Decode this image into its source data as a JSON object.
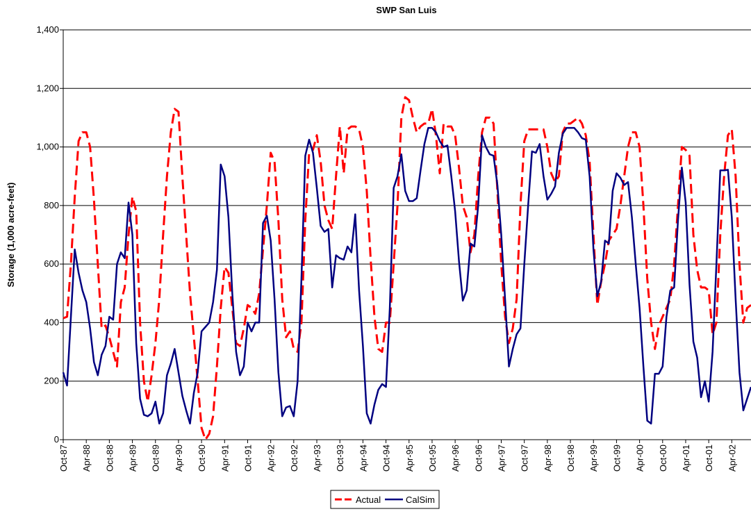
{
  "chart_data": {
    "type": "line",
    "title": "SWP San Luis",
    "y_label": "Storage (1,000 acre-feet)",
    "categories": [
      "Oct-87",
      null,
      null,
      null,
      null,
      null,
      "Apr-88",
      null,
      null,
      null,
      null,
      null,
      "Oct-88",
      null,
      null,
      null,
      null,
      null,
      "Apr-89",
      null,
      null,
      null,
      null,
      null,
      "Oct-89",
      null,
      null,
      null,
      null,
      null,
      "Apr-90",
      null,
      null,
      null,
      null,
      null,
      "Oct-90",
      null,
      null,
      null,
      null,
      null,
      "Apr-91",
      null,
      null,
      null,
      null,
      null,
      "Oct-91",
      null,
      null,
      null,
      null,
      null,
      "Apr-92",
      null,
      null,
      null,
      null,
      null,
      "Oct-92",
      null,
      null,
      null,
      null,
      null,
      "Apr-93",
      null,
      null,
      null,
      null,
      null,
      "Oct-93",
      null,
      null,
      null,
      null,
      null,
      "Apr-94",
      null,
      null,
      null,
      null,
      null,
      "Oct-94",
      null,
      null,
      null,
      null,
      null,
      "Apr-95",
      null,
      null,
      null,
      null,
      null,
      "Oct-95",
      null,
      null,
      null,
      null,
      null,
      "Apr-96",
      null,
      null,
      null,
      null,
      null,
      "Oct-96",
      null,
      null,
      null,
      null,
      null,
      "Apr-97",
      null,
      null,
      null,
      null,
      null,
      "Oct-97",
      null,
      null,
      null,
      null,
      null,
      "Apr-98",
      null,
      null,
      null,
      null,
      null,
      "Oct-98",
      null,
      null,
      null,
      null,
      null,
      "Apr-99",
      null,
      null,
      null,
      null,
      null,
      "Oct-99",
      null,
      null,
      null,
      null,
      null,
      "Apr-00",
      null,
      null,
      null,
      null,
      null,
      "Oct-00",
      null,
      null,
      null,
      null,
      null,
      "Apr-01",
      null,
      null,
      null,
      null,
      null,
      "Oct-01",
      null,
      null,
      null,
      null,
      null,
      "Apr-02",
      null,
      null,
      null,
      null,
      null
    ],
    "series": [
      {
        "name": "Actual",
        "color": "#ff0000",
        "dashed": true,
        "values": [
          415,
          420,
          600,
          830,
          1020,
          1050,
          1050,
          1000,
          820,
          600,
          380,
          390,
          350,
          300,
          250,
          470,
          520,
          700,
          830,
          780,
          400,
          200,
          130,
          220,
          330,
          480,
          700,
          900,
          1050,
          1130,
          1120,
          900,
          700,
          500,
          350,
          200,
          40,
          0,
          20,
          80,
          250,
          450,
          590,
          570,
          450,
          330,
          320,
          380,
          460,
          450,
          430,
          500,
          650,
          800,
          980,
          950,
          750,
          480,
          350,
          370,
          310,
          300,
          400,
          750,
          980,
          990,
          1040,
          950,
          800,
          750,
          720,
          900,
          1070,
          910,
          1060,
          1070,
          1070,
          1060,
          1000,
          850,
          620,
          420,
          310,
          300,
          400,
          400,
          600,
          800,
          1100,
          1170,
          1160,
          1100,
          1050,
          1070,
          1080,
          1080,
          1130,
          1040,
          910,
          1080,
          1070,
          1070,
          1040,
          930,
          800,
          760,
          640,
          700,
          900,
          1050,
          1100,
          1100,
          1080,
          850,
          600,
          420,
          330,
          380,
          480,
          800,
          1020,
          1060,
          1060,
          1060,
          1060,
          1060,
          1000,
          910,
          880,
          900,
          1050,
          1080,
          1080,
          1090,
          1100,
          1080,
          1040,
          950,
          700,
          460,
          540,
          600,
          680,
          700,
          720,
          800,
          900,
          1000,
          1050,
          1050,
          1000,
          800,
          550,
          400,
          310,
          390,
          420,
          450,
          480,
          600,
          800,
          1000,
          990,
          970,
          700,
          580,
          520,
          520,
          510,
          360,
          400,
          700,
          900,
          1040,
          1060,
          900,
          600,
          400,
          450,
          460
        ]
      },
      {
        "name": "CalSim",
        "color": "#000080",
        "dashed": false,
        "values": [
          230,
          185,
          420,
          650,
          570,
          510,
          470,
          380,
          265,
          220,
          290,
          320,
          420,
          410,
          600,
          640,
          620,
          810,
          700,
          330,
          140,
          85,
          80,
          90,
          130,
          55,
          90,
          220,
          260,
          310,
          230,
          150,
          100,
          55,
          160,
          230,
          370,
          385,
          400,
          470,
          580,
          940,
          900,
          760,
          500,
          300,
          220,
          250,
          400,
          370,
          400,
          400,
          740,
          765,
          680,
          480,
          230,
          80,
          110,
          115,
          80,
          200,
          550,
          970,
          1025,
          980,
          860,
          730,
          710,
          720,
          520,
          630,
          620,
          615,
          660,
          640,
          770,
          510,
          320,
          90,
          55,
          120,
          170,
          190,
          180,
          450,
          860,
          900,
          975,
          850,
          815,
          815,
          825,
          920,
          1010,
          1065,
          1065,
          1050,
          1020,
          1000,
          1005,
          900,
          780,
          610,
          475,
          510,
          670,
          660,
          800,
          1040,
          1000,
          975,
          970,
          870,
          700,
          480,
          250,
          310,
          360,
          380,
          600,
          800,
          985,
          980,
          1010,
          900,
          820,
          840,
          865,
          980,
          1045,
          1065,
          1065,
          1065,
          1050,
          1030,
          1025,
          900,
          650,
          490,
          540,
          680,
          670,
          850,
          910,
          895,
          870,
          880,
          760,
          600,
          450,
          250,
          65,
          55,
          225,
          225,
          250,
          420,
          510,
          520,
          750,
          930,
          810,
          530,
          335,
          280,
          145,
          200,
          130,
          300,
          600,
          920,
          920,
          922,
          760,
          480,
          230,
          100,
          140,
          180
        ]
      }
    ],
    "ylim": [
      0,
      1400
    ],
    "yticks": [
      0,
      200,
      400,
      600,
      800,
      {
        "value": 1000,
        "label": "1,000"
      },
      {
        "value": 1200,
        "label": "1,200"
      },
      {
        "value": 1400,
        "label": "1,400"
      }
    ],
    "grid": true,
    "legend": "bottom"
  }
}
